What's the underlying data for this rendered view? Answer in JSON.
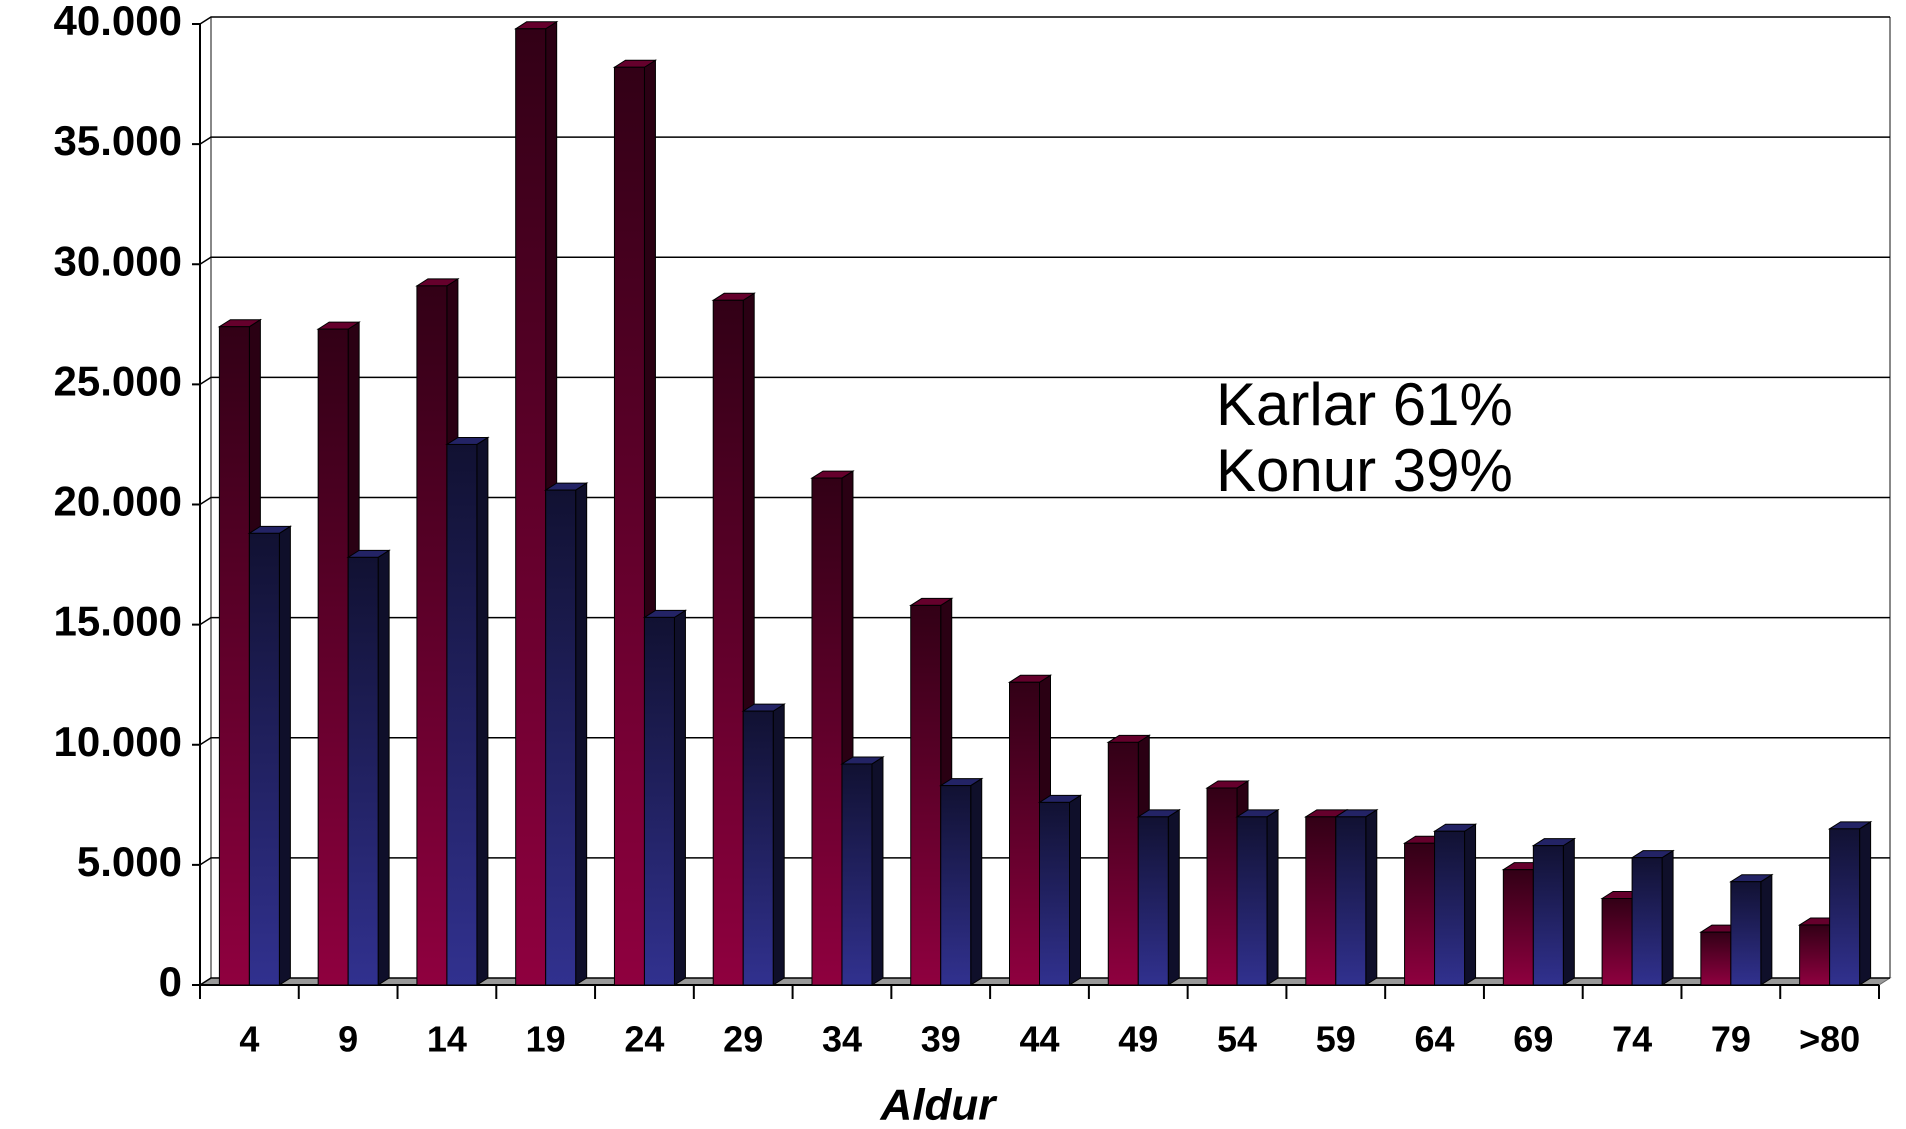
{
  "chart_data": {
    "type": "bar",
    "x_label": "Aldur",
    "categories": [
      "4",
      "9",
      "14",
      "19",
      "24",
      "29",
      "34",
      "39",
      "44",
      "49",
      "54",
      "59",
      "64",
      "69",
      "74",
      "79",
      ">80"
    ],
    "series": [
      {
        "name": "Karlar 61%",
        "color": "#a8004a",
        "values": [
          27400,
          27300,
          29100,
          39800,
          38200,
          28500,
          21100,
          15800,
          12600,
          10100,
          8200,
          7000,
          5900,
          4800,
          3600,
          2200,
          2500
        ]
      },
      {
        "name": "Konur 39%",
        "color": "#3a3aa8",
        "values": [
          18800,
          17800,
          22500,
          20600,
          15300,
          11400,
          9200,
          8300,
          7600,
          7000,
          7000,
          7000,
          6400,
          5800,
          5300,
          4300,
          6500
        ]
      }
    ],
    "ylim": [
      0,
      40000
    ],
    "yticks": [
      0,
      {
        "value": 5000,
        "label": "5.000"
      },
      {
        "value": 10000,
        "label": "10.000"
      },
      {
        "value": 15000,
        "label": "15.000"
      },
      {
        "value": 20000,
        "label": "20.000"
      },
      {
        "value": 25000,
        "label": "25.000"
      },
      {
        "value": 30000,
        "label": "30.000"
      },
      {
        "value": 35000,
        "label": "35.000"
      },
      {
        "value": 40000,
        "label": "40.000"
      }
    ],
    "grid": true
  }
}
